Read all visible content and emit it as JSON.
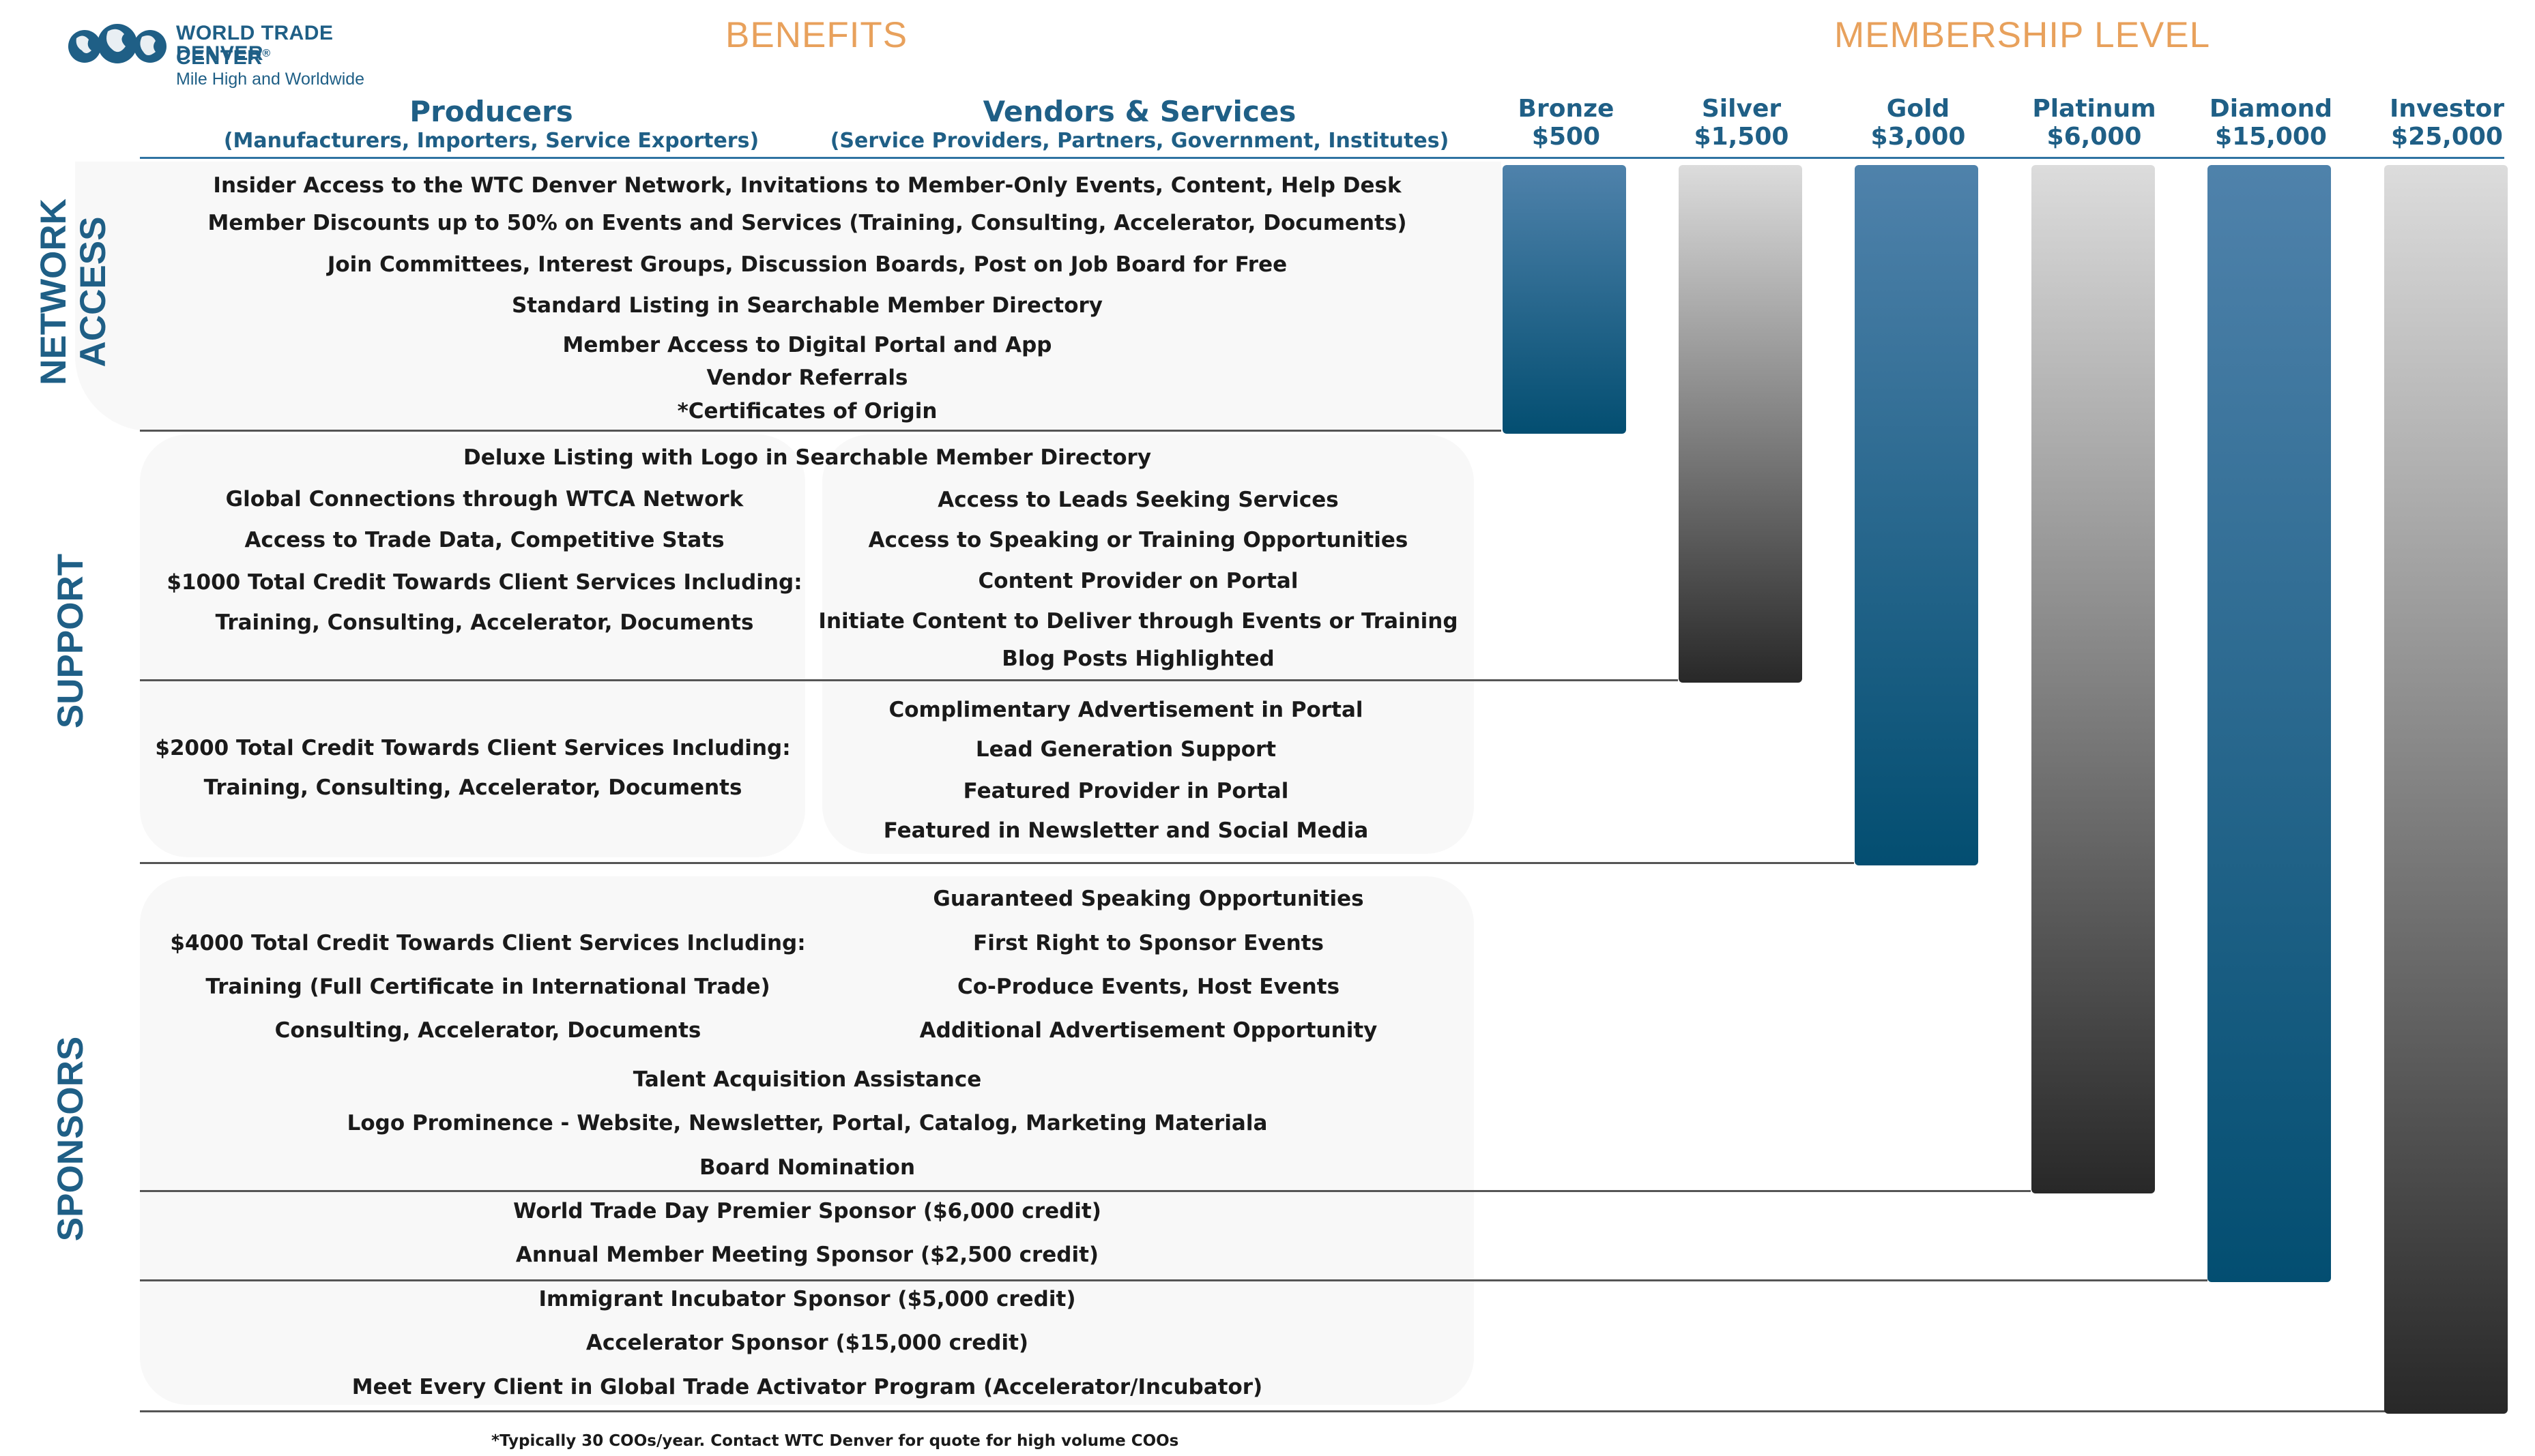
{
  "header": {
    "org_line1": "WORLD TRADE CENTER",
    "org_reg": "®",
    "org_line2": "DENVER",
    "tagline": "Mile High and Worldwide",
    "benefits_title": "BENEFITS",
    "membership_title": "MEMBERSHIP LEVEL"
  },
  "columns": {
    "producers": {
      "title": "Producers",
      "subtitle": "(Manufacturers, Importers, Service Exporters)"
    },
    "vendors": {
      "title": "Vendors & Services",
      "subtitle": "(Service Providers, Partners, Government, Institutes)"
    }
  },
  "tiers": [
    {
      "name": "Bronze",
      "price": "$500",
      "style": "blue",
      "covers_through": "network-access"
    },
    {
      "name": "Silver",
      "price": "$1,500",
      "style": "gray",
      "covers_through": "support-1"
    },
    {
      "name": "Gold",
      "price": "$3,000",
      "style": "blue",
      "covers_through": "support-2"
    },
    {
      "name": "Platinum",
      "price": "$6,000",
      "style": "gray",
      "covers_through": "sponsors-1"
    },
    {
      "name": "Diamond",
      "price": "$15,000",
      "style": "blue",
      "covers_through": "sponsors-2"
    },
    {
      "name": "Investor",
      "price": "$25,000",
      "style": "gray",
      "covers_through": "sponsors-3"
    }
  ],
  "sections": {
    "network": "NETWORK\nACCESS",
    "support": "SUPPORT",
    "sponsors": "SPONSORS"
  },
  "benefits": {
    "network_access": [
      "Insider Access to the WTC Denver Network, Invitations to Member-Only Events, Content, Help Desk",
      "Member Discounts up to 50% on Events and Services (Training, Consulting, Accelerator, Documents)",
      "Join Committees, Interest Groups, Discussion Boards, Post on Job Board for Free",
      "Standard Listing in Searchable Member Directory",
      "Member Access to Digital Portal and App",
      "Vendor Referrals",
      "*Certificates of Origin"
    ],
    "support_1": {
      "shared": "Deluxe Listing with Logo in Searchable Member Directory",
      "producers": [
        "Global Connections through WTCA Network",
        "Access to Trade Data, Competitive Stats",
        "$1000 Total Credit Towards Client Services Including:",
        "Training, Consulting, Accelerator, Documents"
      ],
      "vendors": [
        "Access to Leads Seeking Services",
        "Access to Speaking or Training Opportunities",
        "Content Provider on Portal",
        "Initiate Content to Deliver through Events or Training",
        "Blog Posts Highlighted"
      ]
    },
    "support_2": {
      "producers": [
        "$2000 Total Credit Towards Client Services Including:",
        "Training, Consulting, Accelerator, Documents"
      ],
      "vendors": [
        "Complimentary Advertisement in Portal",
        "Lead Generation Support",
        "Featured Provider in Portal",
        "Featured in Newsletter and Social Media"
      ]
    },
    "sponsors_1": {
      "producers": [
        "$4000 Total Credit Towards Client Services Including:",
        "Training (Full Certificate in International Trade)",
        "Consulting, Accelerator, Documents"
      ],
      "vendors": [
        "Guaranteed Speaking Opportunities",
        "First Right to Sponsor Events",
        "Co-Produce Events, Host Events",
        "Additional Advertisement Opportunity"
      ],
      "shared": [
        "Talent Acquisition Assistance",
        "Logo Prominence - Website, Newsletter, Portal, Catalog, Marketing Materiala",
        "Board Nomination"
      ]
    },
    "sponsors_2": [
      "World Trade Day Premier Sponsor ($6,000 credit)",
      "Annual Member Meeting Sponsor ($2,500 credit)"
    ],
    "sponsors_3": [
      "Immigrant Incubator Sponsor ($5,000 credit)",
      "Accelerator Sponsor ($15,000 credit)",
      "Meet Every Client in Global Trade Activator Program (Accelerator/Incubator)"
    ]
  },
  "footnote": "*Typically 30 COOs/year. Contact WTC Denver for quote for high volume COOs",
  "colors": {
    "brand_blue": "#1f5f86",
    "heading_orange": "#e8a15c",
    "bar_blue_top": "#4f82ab",
    "bar_blue_bottom": "#034e71",
    "bar_gray_top": "#dcdcdc",
    "bar_gray_bottom": "#282828"
  }
}
